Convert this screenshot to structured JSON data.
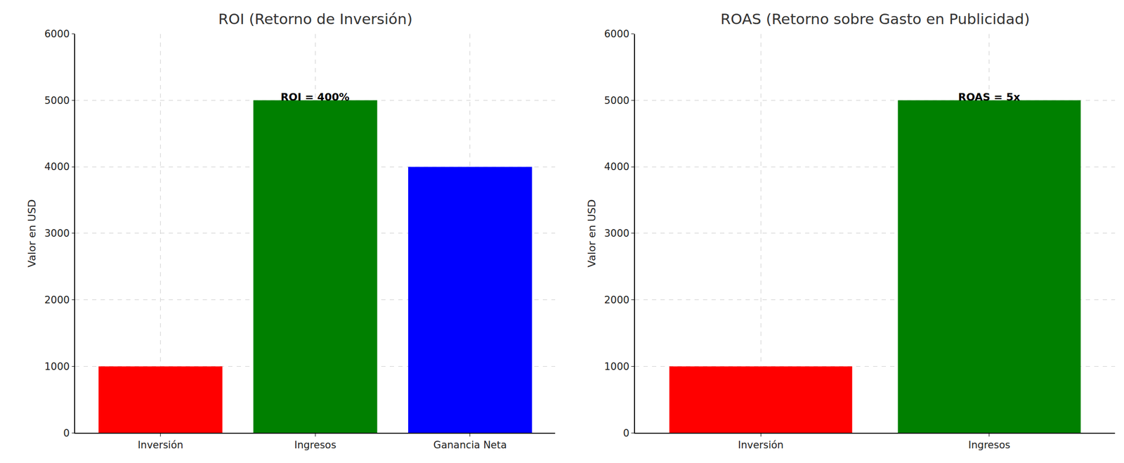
{
  "chart_data": [
    {
      "type": "bar",
      "title": "ROI (Retorno de Inversión)",
      "y_label": "Valor en USD",
      "categories": [
        "Inversión",
        "Ingresos",
        "Ganancia Neta"
      ],
      "values": [
        1000,
        5000,
        4000
      ],
      "colors": [
        "#ff0000",
        "#008000",
        "#0000ff"
      ],
      "ylim": [
        0,
        6000
      ],
      "yticks": [
        0,
        1000,
        2000,
        3000,
        4000,
        5000,
        6000
      ],
      "grid": true,
      "annotations": [
        {
          "text": "ROI = 400%",
          "x": "Ingresos",
          "y": 5000
        }
      ]
    },
    {
      "type": "bar",
      "title": "ROAS (Retorno sobre Gasto en Publicidad)",
      "y_label": "Valor en USD",
      "categories": [
        "Inversión",
        "Ingresos"
      ],
      "values": [
        1000,
        5000
      ],
      "colors": [
        "#ff0000",
        "#008000"
      ],
      "ylim": [
        0,
        6000
      ],
      "yticks": [
        0,
        1000,
        2000,
        3000,
        4000,
        5000,
        6000
      ],
      "grid": true,
      "annotations": [
        {
          "text": "ROAS = 5x",
          "x": "Ingresos",
          "y": 5000
        }
      ]
    }
  ]
}
